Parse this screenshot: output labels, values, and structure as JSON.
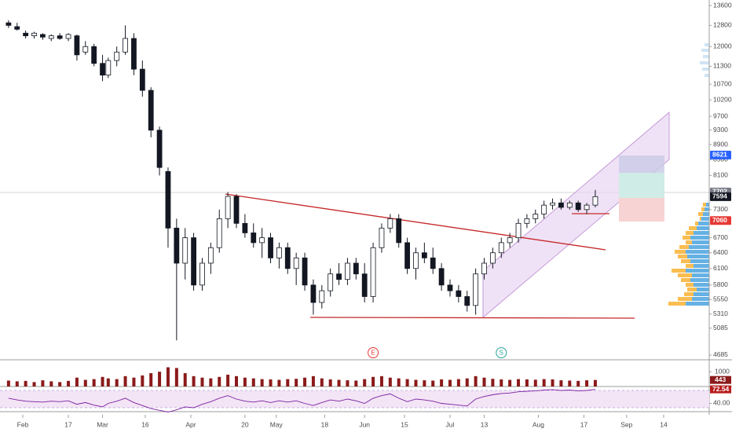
{
  "chart_data": {
    "type": "candlestick",
    "log_scale": true,
    "xlim": [
      "Jan 24",
      "Sep 30"
    ],
    "xticks": [
      {
        "value": "Feb 1",
        "label": "Feb"
      },
      {
        "value": "Feb 17",
        "label": "17"
      },
      {
        "value": "Mar 1",
        "label": "Mar"
      },
      {
        "value": "Mar 16",
        "label": "16"
      },
      {
        "value": "Apr 1",
        "label": "Apr"
      },
      {
        "value": "Apr 20",
        "label": "20"
      },
      {
        "value": "May 1",
        "label": "May"
      },
      {
        "value": "May 18",
        "label": "18"
      },
      {
        "value": "Jun 1",
        "label": "Jun"
      },
      {
        "value": "Jun 15",
        "label": "15"
      },
      {
        "value": "Jul 1",
        "label": "Jul"
      },
      {
        "value": "Jul 13",
        "label": "13"
      },
      {
        "value": "Aug 1",
        "label": "Aug"
      },
      {
        "value": "Aug 17",
        "label": "17"
      },
      {
        "value": "Sep 1",
        "label": "Sep"
      },
      {
        "value": "Sep 14",
        "label": "14"
      }
    ],
    "ylim": [
      4618,
      13830
    ],
    "yticks": [
      13600,
      12800,
      12000,
      11300,
      10700,
      10200,
      9700,
      9300,
      8900,
      8500,
      8100,
      7700,
      7300,
      6700,
      6400,
      6100,
      5800,
      5550,
      5310,
      5085,
      4685
    ],
    "up_color": "#ffffff",
    "down_color": "#131722",
    "x": [
      "Jan 27",
      "Jan 30",
      "Feb 2",
      "Feb 5",
      "Feb 8",
      "Feb 11",
      "Feb 14",
      "Feb 17",
      "Feb 20",
      "Feb 23",
      "Feb 26",
      "Feb 29",
      "Mar 3",
      "Mar 6",
      "Mar 9",
      "Mar 12",
      "Mar 15",
      "Mar 18",
      "Mar 21",
      "Mar 24",
      "Mar 27",
      "Mar 30",
      "Apr 2",
      "Apr 5",
      "Apr 8",
      "Apr 11",
      "Apr 14",
      "Apr 17",
      "Apr 20",
      "Apr 23",
      "Apr 26",
      "Apr 29",
      "May 2",
      "May 5",
      "May 8",
      "May 11",
      "May 14",
      "May 17",
      "May 20",
      "May 23",
      "May 26",
      "May 29",
      "Jun 1",
      "Jun 4",
      "Jun 7",
      "Jun 10",
      "Jun 13",
      "Jun 16",
      "Jun 19",
      "Jun 22",
      "Jun 25",
      "Jun 28",
      "Jul 1",
      "Jul 4",
      "Jul 7",
      "Jul 10",
      "Jul 13",
      "Jul 16",
      "Jul 19",
      "Jul 22",
      "Jul 25",
      "Jul 28",
      "Jul 31",
      "Aug 3",
      "Aug 6",
      "Aug 9",
      "Aug 12",
      "Aug 15",
      "Aug 18",
      "Aug 21"
    ],
    "open": [
      12900,
      12750,
      12500,
      12400,
      12450,
      12300,
      12400,
      12300,
      12400,
      11800,
      12000,
      11400,
      11000,
      11500,
      11800,
      12300,
      11200,
      10500,
      9300,
      8200,
      6900,
      6200,
      6700,
      5800,
      6200,
      6500,
      7100,
      7600,
      7000,
      6800,
      6600,
      6700,
      6300,
      6500,
      6100,
      6300,
      5800,
      5500,
      5700,
      6000,
      5900,
      6200,
      6000,
      5600,
      6500,
      6900,
      7100,
      6600,
      6100,
      6400,
      6300,
      6100,
      5800,
      5700,
      5600,
      5450,
      6000,
      6200,
      6400,
      6600,
      6700,
      7000,
      7100,
      7200,
      7400,
      7450,
      7350,
      7450,
      7300,
      7400
    ],
    "high": [
      13000,
      12900,
      12600,
      12550,
      12500,
      12450,
      12500,
      12500,
      12450,
      12200,
      12100,
      11700,
      11600,
      12000,
      12800,
      12500,
      11500,
      10600,
      9400,
      8300,
      7100,
      6900,
      6800,
      6300,
      6600,
      7300,
      7700,
      7650,
      7200,
      7000,
      6900,
      6800,
      6600,
      6600,
      6400,
      6400,
      5900,
      5800,
      6100,
      6200,
      6300,
      6300,
      6200,
      6600,
      7000,
      7200,
      7200,
      6700,
      6500,
      6600,
      6500,
      6200,
      5900,
      5800,
      5700,
      6100,
      6300,
      6500,
      6700,
      6800,
      7100,
      7200,
      7300,
      7500,
      7550,
      7550,
      7500,
      7500,
      7450,
      7750
    ],
    "low": [
      12700,
      12600,
      12300,
      12300,
      12250,
      12200,
      12250,
      12200,
      11500,
      11700,
      11300,
      10800,
      10900,
      11300,
      11700,
      11000,
      10300,
      9100,
      8100,
      6500,
      4900,
      5900,
      5700,
      5700,
      6000,
      6400,
      6900,
      6900,
      6700,
      6500,
      6300,
      6200,
      6100,
      6000,
      5800,
      5700,
      5300,
      5400,
      5600,
      5800,
      5800,
      5900,
      5500,
      5500,
      6400,
      6800,
      6500,
      6000,
      5900,
      6200,
      6000,
      5700,
      5600,
      5500,
      5350,
      5300,
      5900,
      6100,
      6300,
      6500,
      6600,
      6900,
      7000,
      7100,
      7300,
      7300,
      7300,
      7250,
      7200,
      7350
    ],
    "close": [
      12800,
      12650,
      12400,
      12500,
      12350,
      12400,
      12300,
      12450,
      11700,
      12000,
      11400,
      11000,
      11500,
      11800,
      12300,
      11200,
      10500,
      9300,
      8300,
      6900,
      6200,
      6700,
      5800,
      6200,
      6500,
      7100,
      7600,
      7000,
      6800,
      6600,
      6700,
      6300,
      6500,
      6100,
      6300,
      5800,
      5500,
      5700,
      6000,
      5900,
      6200,
      6000,
      5600,
      6500,
      6900,
      7100,
      6600,
      6100,
      6400,
      6300,
      6100,
      5800,
      5700,
      5600,
      5450,
      6000,
      6200,
      6400,
      6600,
      6700,
      7000,
      7100,
      7200,
      7400,
      7450,
      7350,
      7450,
      7300,
      7400,
      7594
    ],
    "price_labels": [
      {
        "value": 8621,
        "color": "#2962ff"
      },
      {
        "value": 7702,
        "color": "#787b86"
      },
      {
        "value": 7594,
        "color": "#131722"
      },
      {
        "value": 7060,
        "color": "#e53935"
      }
    ],
    "events": [
      {
        "label": "E",
        "x": "Jun 4",
        "color": "#e53935"
      },
      {
        "label": "S",
        "x": "Jul 19",
        "color": "#26a69a"
      }
    ],
    "volume": {
      "color": "#8b1a1a",
      "ylim": [
        0,
        1700
      ],
      "yticks": [
        1000
      ],
      "values": [
        400,
        350,
        380,
        300,
        420,
        350,
        300,
        380,
        600,
        450,
        500,
        650,
        550,
        500,
        700,
        600,
        750,
        900,
        1000,
        1300,
        1250,
        900,
        700,
        600,
        550,
        650,
        800,
        700,
        600,
        550,
        500,
        480,
        450,
        500,
        520,
        600,
        700,
        550,
        480,
        450,
        420,
        400,
        500,
        650,
        700,
        600,
        550,
        500,
        450,
        420,
        400,
        480,
        450,
        500,
        550,
        700,
        600,
        520,
        480,
        450,
        500,
        480,
        460,
        500,
        480,
        420,
        400,
        380,
        420,
        443
      ]
    },
    "rsi": {
      "color": "#7b1fa2",
      "band_color": "#f3e5f5",
      "band": [
        30,
        70
      ],
      "ylim": [
        22.7,
        77.3
      ],
      "yticks": [
        {
          "value": 40,
          "label": "40.00"
        }
      ],
      "values": [
        52,
        48,
        45,
        44,
        43,
        45,
        44,
        46,
        38,
        42,
        36,
        32,
        40,
        45,
        52,
        42,
        35,
        28,
        24,
        20,
        25,
        32,
        30,
        38,
        44,
        52,
        58,
        50,
        45,
        43,
        46,
        42,
        46,
        43,
        46,
        40,
        35,
        42,
        48,
        45,
        50,
        46,
        40,
        52,
        58,
        62,
        52,
        44,
        50,
        48,
        45,
        40,
        38,
        36,
        34,
        50,
        56,
        60,
        63,
        64,
        67,
        68,
        69,
        71,
        72,
        70,
        71,
        69,
        70,
        72.54
      ]
    }
  }
}
